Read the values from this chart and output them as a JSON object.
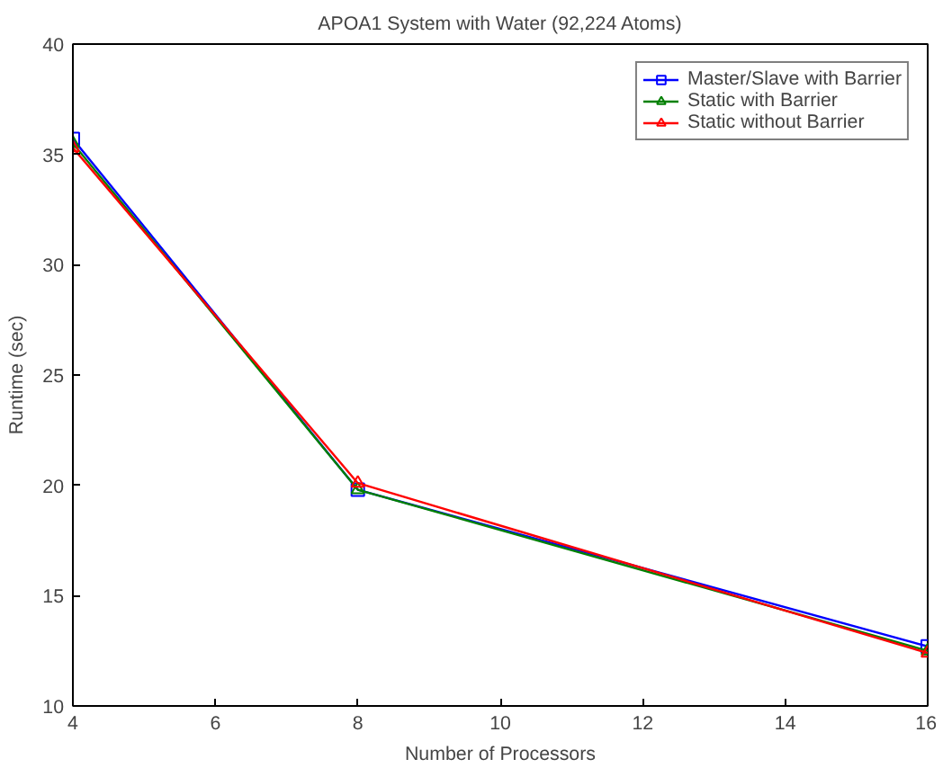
{
  "chart_data": {
    "type": "line",
    "title": "APOA1 System with Water (92,224 Atoms)",
    "xlabel": "Number of Processors",
    "ylabel": "Runtime (sec)",
    "x": [
      4,
      8,
      16
    ],
    "series": [
      {
        "name": "Master/Slave with Barrier",
        "color": "#0000ff",
        "values": [
          35.7,
          19.8,
          12.7
        ],
        "marker": "square"
      },
      {
        "name": "Static with Barrier",
        "color": "#008000",
        "values": [
          35.5,
          19.8,
          12.5
        ],
        "marker": "triangle"
      },
      {
        "name": "Static without Barrier",
        "color": "#ff0000",
        "values": [
          35.3,
          20.1,
          12.4
        ],
        "marker": "triangle"
      }
    ],
    "xlim": [
      4,
      16
    ],
    "xticks": [
      4,
      6,
      8,
      10,
      12,
      14,
      16
    ],
    "ylim": [
      10,
      40
    ],
    "yticks": [
      10,
      15,
      20,
      25,
      30,
      35,
      40
    ],
    "grid": false,
    "legend": "top right",
    "line_style": "solid"
  }
}
